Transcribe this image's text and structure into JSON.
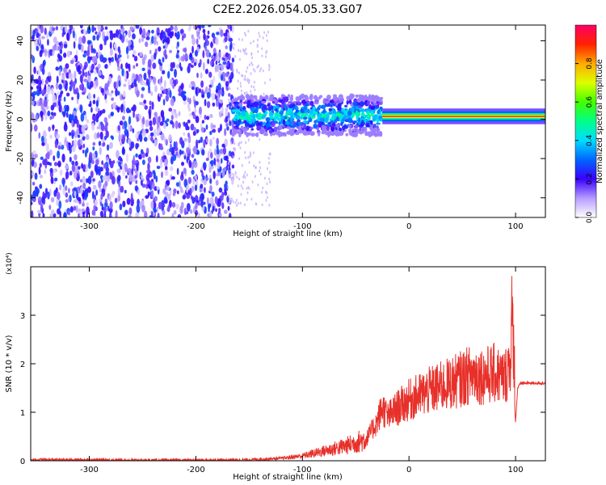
{
  "title": "C2E2.2026.054.05.33.G07",
  "colors": {
    "spectrogram_tail": "#6a00ff",
    "snr_line": "#e8302a",
    "axis": "#000000"
  },
  "chart_data": [
    {
      "type": "heatmap",
      "description_role": "spectrogram",
      "xlabel": "Height of straight line (km)",
      "ylabel": "Frequency (Hz)",
      "xlim": [
        -355,
        128
      ],
      "ylim": [
        -50,
        48
      ],
      "xticks": [
        -300,
        -200,
        -100,
        0,
        100
      ],
      "yticks": [
        -40,
        -20,
        0,
        20,
        40
      ],
      "colorbar": {
        "label": "Normalized spectral amplitude",
        "range": [
          0,
          1
        ],
        "ticks": [
          0.0,
          0.2,
          0.4,
          0.6,
          0.8
        ]
      },
      "regions": [
        {
          "x_range": [
            -355,
            -165
          ],
          "freq_range": [
            -50,
            48
          ],
          "amplitude": 0.15,
          "pattern": "broadband noise"
        },
        {
          "x_range": [
            -165,
            -25
          ],
          "freq_range": [
            -8,
            12
          ],
          "amplitude": 0.45,
          "pattern": "signal emerging"
        },
        {
          "x_range": [
            -25,
            128
          ],
          "freq_center": 1.5,
          "freq_width": 4,
          "amplitude": 0.95,
          "pattern": "narrow tone"
        }
      ]
    },
    {
      "type": "line",
      "description_role": "snr",
      "xlabel": "Height of straight line (km)",
      "ylabel": "SNR (10 * v/v)",
      "yscale_label": "(x10⁴)",
      "xlim": [
        -355,
        128
      ],
      "ylim": [
        0,
        4
      ],
      "xticks": [
        -300,
        -200,
        -100,
        0,
        100
      ],
      "yticks": [
        0,
        1,
        2,
        3
      ],
      "series": [
        {
          "x": [
            -355,
            -300,
            -250,
            -200,
            -150,
            -120,
            -100,
            -80,
            -60,
            -40,
            -30,
            -25,
            -20,
            -10,
            0,
            20,
            40,
            50,
            60,
            70,
            80,
            90,
            95,
            98,
            100,
            102,
            105,
            128
          ],
          "y": [
            0.02,
            0.02,
            0.01,
            0.01,
            0.02,
            0.05,
            0.1,
            0.2,
            0.3,
            0.45,
            0.8,
            1.1,
            0.9,
            1.1,
            1.25,
            1.45,
            1.6,
            1.7,
            1.8,
            1.75,
            1.8,
            1.7,
            2.1,
            3.0,
            0.8,
            1.5,
            1.6,
            1.6
          ]
        }
      ]
    }
  ]
}
